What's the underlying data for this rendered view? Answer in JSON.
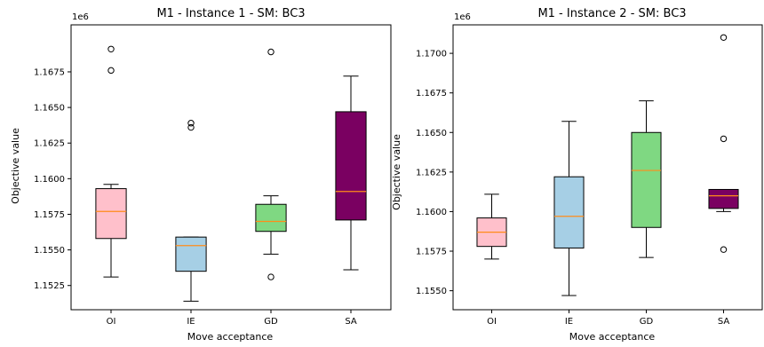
{
  "chart_data": [
    {
      "type": "box",
      "title": "M1 - Instance 1 - SM: BC3",
      "xlabel": "Move acceptance",
      "ylabel": "Objective value",
      "offset_text": "1e6",
      "categories": [
        "OI",
        "IE",
        "GD",
        "SA"
      ],
      "ylim": [
        1.1508,
        1.1708
      ],
      "yticks": [
        1.1525,
        1.155,
        1.1575,
        1.16,
        1.1625,
        1.165,
        1.1675
      ],
      "ytick_labels": [
        "1.1525",
        "1.1550",
        "1.1575",
        "1.1600",
        "1.1625",
        "1.1650",
        "1.1675"
      ],
      "grid": false,
      "boxes": [
        {
          "label": "OI",
          "whislo": 1.1531,
          "q1": 1.1558,
          "med": 1.1577,
          "q3": 1.1593,
          "whishi": 1.1596,
          "fliers": [
            1.1676,
            1.1691
          ],
          "color": "#ffc0cb"
        },
        {
          "label": "IE",
          "whislo": 1.1514,
          "q1": 1.1535,
          "med": 1.1553,
          "q3": 1.1559,
          "whishi": 1.1559,
          "fliers": [
            1.1636,
            1.1639
          ],
          "color": "#a6cfe5"
        },
        {
          "label": "GD",
          "whislo": 1.1547,
          "q1": 1.1563,
          "med": 1.157,
          "q3": 1.1582,
          "whishi": 1.1588,
          "fliers": [
            1.1531,
            1.1689
          ],
          "color": "#7fd882"
        },
        {
          "label": "SA",
          "whislo": 1.1536,
          "q1": 1.1571,
          "med": 1.1591,
          "q3": 1.1647,
          "whishi": 1.1672,
          "fliers": [],
          "color": "#7a0061"
        }
      ]
    },
    {
      "type": "box",
      "title": "M1 - Instance 2 - SM: BC3",
      "xlabel": "Move acceptance",
      "ylabel": "Objective value",
      "offset_text": "1e6",
      "categories": [
        "OI",
        "IE",
        "GD",
        "SA"
      ],
      "ylim": [
        1.1538,
        1.1718
      ],
      "yticks": [
        1.155,
        1.1575,
        1.16,
        1.1625,
        1.165,
        1.1675,
        1.17
      ],
      "ytick_labels": [
        "1.1550",
        "1.1575",
        "1.1600",
        "1.1625",
        "1.1650",
        "1.1675",
        "1.1700"
      ],
      "grid": false,
      "boxes": [
        {
          "label": "OI",
          "whislo": 1.157,
          "q1": 1.1578,
          "med": 1.1587,
          "q3": 1.1596,
          "whishi": 1.1611,
          "fliers": [],
          "color": "#ffc0cb"
        },
        {
          "label": "IE",
          "whislo": 1.1547,
          "q1": 1.1577,
          "med": 1.1597,
          "q3": 1.1622,
          "whishi": 1.1657,
          "fliers": [],
          "color": "#a6cfe5"
        },
        {
          "label": "GD",
          "whislo": 1.1571,
          "q1": 1.159,
          "med": 1.1626,
          "q3": 1.165,
          "whishi": 1.167,
          "fliers": [],
          "color": "#7fd882"
        },
        {
          "label": "SA",
          "whislo": 1.16,
          "q1": 1.1602,
          "med": 1.161,
          "q3": 1.1614,
          "whishi": 1.1614,
          "fliers": [
            1.1576,
            1.1646,
            1.171
          ],
          "color": "#7a0061"
        }
      ]
    }
  ],
  "style": {
    "median_color": "#ff8c1a",
    "line_color": "#000000"
  }
}
